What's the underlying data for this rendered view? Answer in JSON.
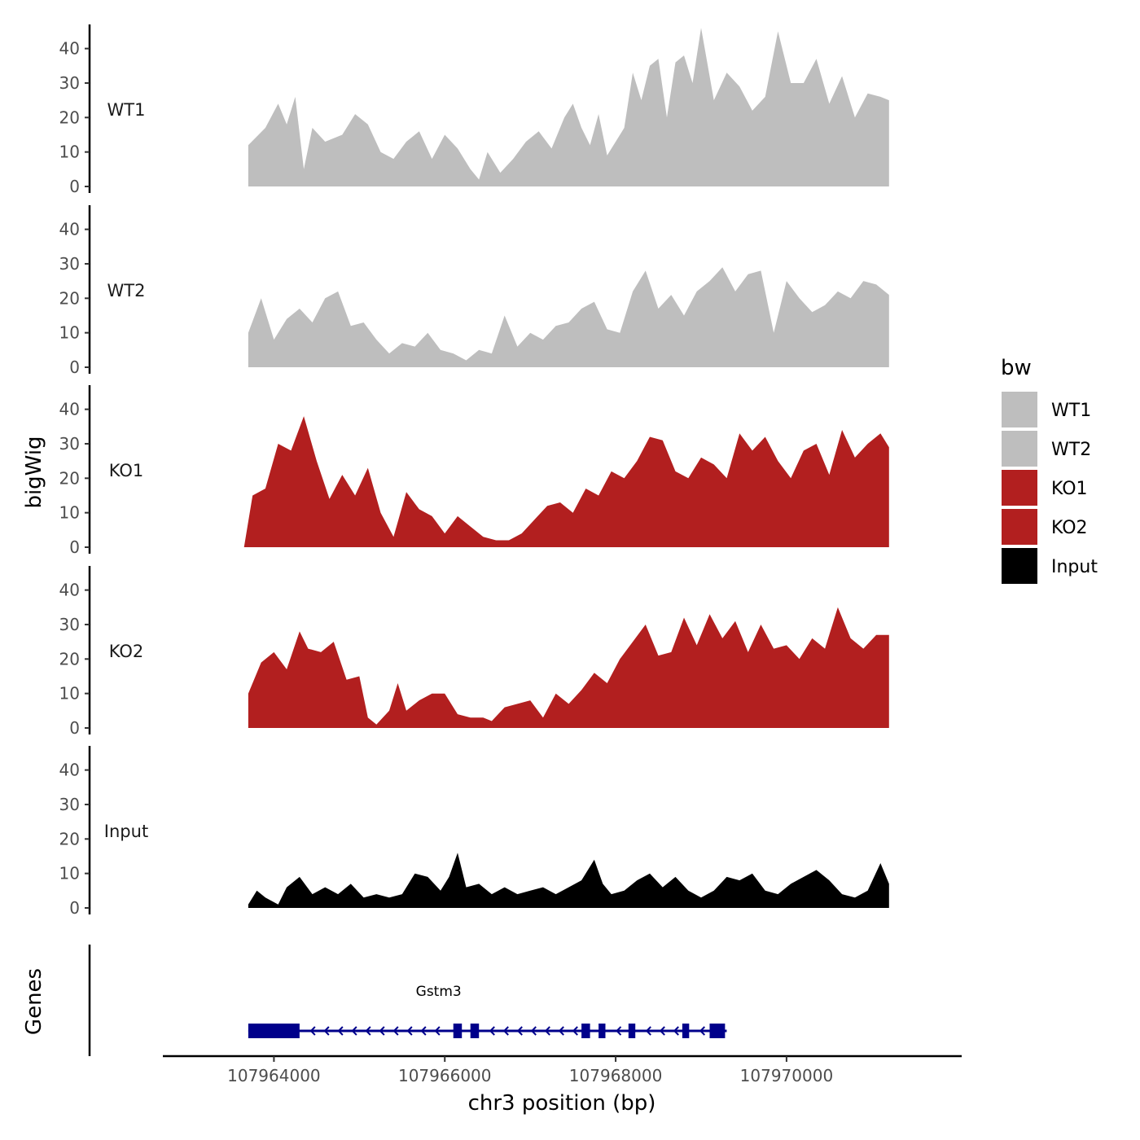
{
  "chart_data": {
    "type": "area",
    "ylabel": "bigWig",
    "xlabel": "chr3 position (bp)",
    "genes_label": "Genes",
    "ylim": [
      0,
      47
    ],
    "y_ticks": [
      0,
      10,
      20,
      30,
      40
    ],
    "y_tick_labels": [
      "0",
      "10",
      "20",
      "30",
      "40"
    ],
    "xlim": [
      107962700,
      107972050
    ],
    "x_ticks": [
      107964000,
      107966000,
      107968000,
      107970000
    ],
    "x_tick_labels": [
      "107964000",
      "107966000",
      "107968000",
      "107970000"
    ],
    "legend": {
      "title": "bw",
      "entries": [
        {
          "label": "WT1",
          "color": "#bebebe"
        },
        {
          "label": "WT2",
          "color": "#bebebe"
        },
        {
          "label": "KO1",
          "color": "#b21f1f"
        },
        {
          "label": "KO2",
          "color": "#b21f1f"
        },
        {
          "label": "Input",
          "color": "#000000"
        }
      ]
    },
    "series": [
      {
        "name": "WT1",
        "color": "#bebebe",
        "x": [
          107963700,
          107963900,
          107964050,
          107964150,
          107964250,
          107964350,
          107964450,
          107964600,
          107964800,
          107964950,
          107965100,
          107965250,
          107965400,
          107965550,
          107965700,
          107965850,
          107966000,
          107966150,
          107966300,
          107966400,
          107966500,
          107966650,
          107966800,
          107966950,
          107967100,
          107967250,
          107967400,
          107967500,
          107967600,
          107967700,
          107967800,
          107967900,
          107968000,
          107968100,
          107968200,
          107968300,
          107968400,
          107968500,
          107968600,
          107968700,
          107968800,
          107968900,
          107969000,
          107969150,
          107969300,
          107969450,
          107969600,
          107969750,
          107969900,
          107970050,
          107970200,
          107970350,
          107970500,
          107970650,
          107970800,
          107970950,
          107971100,
          107971200
        ],
        "values": [
          12,
          17,
          24,
          18,
          26,
          5,
          17,
          13,
          15,
          21,
          18,
          10,
          8,
          13,
          16,
          8,
          15,
          11,
          5,
          2,
          10,
          4,
          8,
          13,
          16,
          11,
          20,
          24,
          17,
          12,
          21,
          9,
          13,
          17,
          33,
          25,
          35,
          37,
          20,
          36,
          38,
          30,
          46,
          25,
          33,
          29,
          22,
          26,
          45,
          30,
          30,
          37,
          24,
          32,
          20,
          27,
          26,
          25
        ]
      },
      {
        "name": "WT2",
        "color": "#bebebe",
        "x": [
          107963700,
          107963850,
          107964000,
          107964150,
          107964300,
          107964450,
          107964600,
          107964750,
          107964900,
          107965050,
          107965200,
          107965350,
          107965500,
          107965650,
          107965800,
          107965950,
          107966100,
          107966250,
          107966400,
          107966550,
          107966700,
          107966850,
          107967000,
          107967150,
          107967300,
          107967450,
          107967600,
          107967750,
          107967900,
          107968050,
          107968200,
          107968350,
          107968500,
          107968650,
          107968800,
          107968950,
          107969100,
          107969250,
          107969400,
          107969550,
          107969700,
          107969850,
          107970000,
          107970150,
          107970300,
          107970450,
          107970600,
          107970750,
          107970900,
          107971050,
          107971200
        ],
        "values": [
          10,
          20,
          8,
          14,
          17,
          13,
          20,
          22,
          12,
          13,
          8,
          4,
          7,
          6,
          10,
          5,
          4,
          2,
          5,
          4,
          15,
          6,
          10,
          8,
          12,
          13,
          17,
          19,
          11,
          10,
          22,
          28,
          17,
          21,
          15,
          22,
          25,
          29,
          22,
          27,
          28,
          10,
          25,
          20,
          16,
          18,
          22,
          20,
          25,
          24,
          21
        ]
      },
      {
        "name": "KO1",
        "color": "#b21f1f",
        "x": [
          107963650,
          107963750,
          107963900,
          107964050,
          107964200,
          107964350,
          107964500,
          107964650,
          107964800,
          107964950,
          107965100,
          107965250,
          107965400,
          107965550,
          107965700,
          107965850,
          107966000,
          107966150,
          107966300,
          107966450,
          107966600,
          107966750,
          107966900,
          107967050,
          107967200,
          107967350,
          107967500,
          107967650,
          107967800,
          107967950,
          107968100,
          107968250,
          107968400,
          107968550,
          107968700,
          107968850,
          107969000,
          107969150,
          107969300,
          107969450,
          107969600,
          107969750,
          107969900,
          107970050,
          107970200,
          107970350,
          107970500,
          107970650,
          107970800,
          107970950,
          107971100,
          107971200
        ],
        "values": [
          0,
          15,
          17,
          30,
          28,
          38,
          25,
          14,
          21,
          15,
          23,
          10,
          3,
          16,
          11,
          9,
          4,
          9,
          6,
          3,
          2,
          2,
          4,
          8,
          12,
          13,
          10,
          17,
          15,
          22,
          20,
          25,
          32,
          31,
          22,
          20,
          26,
          24,
          20,
          33,
          28,
          32,
          25,
          20,
          28,
          30,
          21,
          34,
          26,
          30,
          33,
          29
        ]
      },
      {
        "name": "KO2",
        "color": "#b21f1f",
        "x": [
          107963700,
          107963850,
          107964000,
          107964150,
          107964300,
          107964400,
          107964550,
          107964700,
          107964850,
          107965000,
          107965100,
          107965200,
          107965350,
          107965450,
          107965550,
          107965700,
          107965850,
          107966000,
          107966150,
          107966300,
          107966450,
          107966550,
          107966700,
          107966850,
          107967000,
          107967150,
          107967300,
          107967450,
          107967600,
          107967750,
          107967900,
          107968050,
          107968200,
          107968350,
          107968500,
          107968650,
          107968800,
          107968950,
          107969100,
          107969250,
          107969400,
          107969550,
          107969700,
          107969850,
          107970000,
          107970150,
          107970300,
          107970450,
          107970600,
          107970750,
          107970900,
          107971050,
          107971200
        ],
        "values": [
          10,
          19,
          22,
          17,
          28,
          23,
          22,
          25,
          14,
          15,
          3,
          1,
          5,
          13,
          5,
          8,
          10,
          10,
          4,
          3,
          3,
          2,
          6,
          7,
          8,
          3,
          10,
          7,
          11,
          16,
          13,
          20,
          25,
          30,
          21,
          22,
          32,
          24,
          33,
          26,
          31,
          22,
          30,
          23,
          24,
          20,
          26,
          23,
          35,
          26,
          23,
          27,
          27
        ]
      },
      {
        "name": "Input",
        "color": "#000000",
        "x": [
          107963700,
          107963800,
          107963900,
          107964050,
          107964150,
          107964300,
          107964450,
          107964600,
          107964750,
          107964900,
          107965050,
          107965200,
          107965350,
          107965500,
          107965650,
          107965800,
          107965950,
          107966050,
          107966150,
          107966250,
          107966400,
          107966550,
          107966700,
          107966850,
          107967000,
          107967150,
          107967300,
          107967450,
          107967600,
          107967750,
          107967850,
          107967950,
          107968100,
          107968250,
          107968400,
          107968550,
          107968700,
          107968850,
          107969000,
          107969150,
          107969300,
          107969450,
          107969600,
          107969750,
          107969900,
          107970050,
          107970200,
          107970350,
          107970500,
          107970650,
          107970800,
          107970950,
          107971100,
          107971200
        ],
        "values": [
          1,
          5,
          3,
          1,
          6,
          9,
          4,
          6,
          4,
          7,
          3,
          4,
          3,
          4,
          10,
          9,
          5,
          9,
          16,
          6,
          7,
          4,
          6,
          4,
          5,
          6,
          4,
          6,
          8,
          14,
          7,
          4,
          5,
          8,
          10,
          6,
          9,
          5,
          3,
          5,
          9,
          8,
          10,
          5,
          4,
          7,
          9,
          11,
          8,
          4,
          3,
          5,
          13,
          7
        ]
      }
    ],
    "genes": [
      {
        "name": "Gstm3",
        "strand": "-",
        "start": 107963700,
        "end": 107969300,
        "exons": [
          [
            107963700,
            107964300
          ],
          [
            107966100,
            107966200
          ],
          [
            107966300,
            107966400
          ],
          [
            107967600,
            107967700
          ],
          [
            107967800,
            107967880
          ],
          [
            107968150,
            107968230
          ],
          [
            107968780,
            107968860
          ],
          [
            107969100,
            107969280
          ]
        ]
      }
    ]
  }
}
